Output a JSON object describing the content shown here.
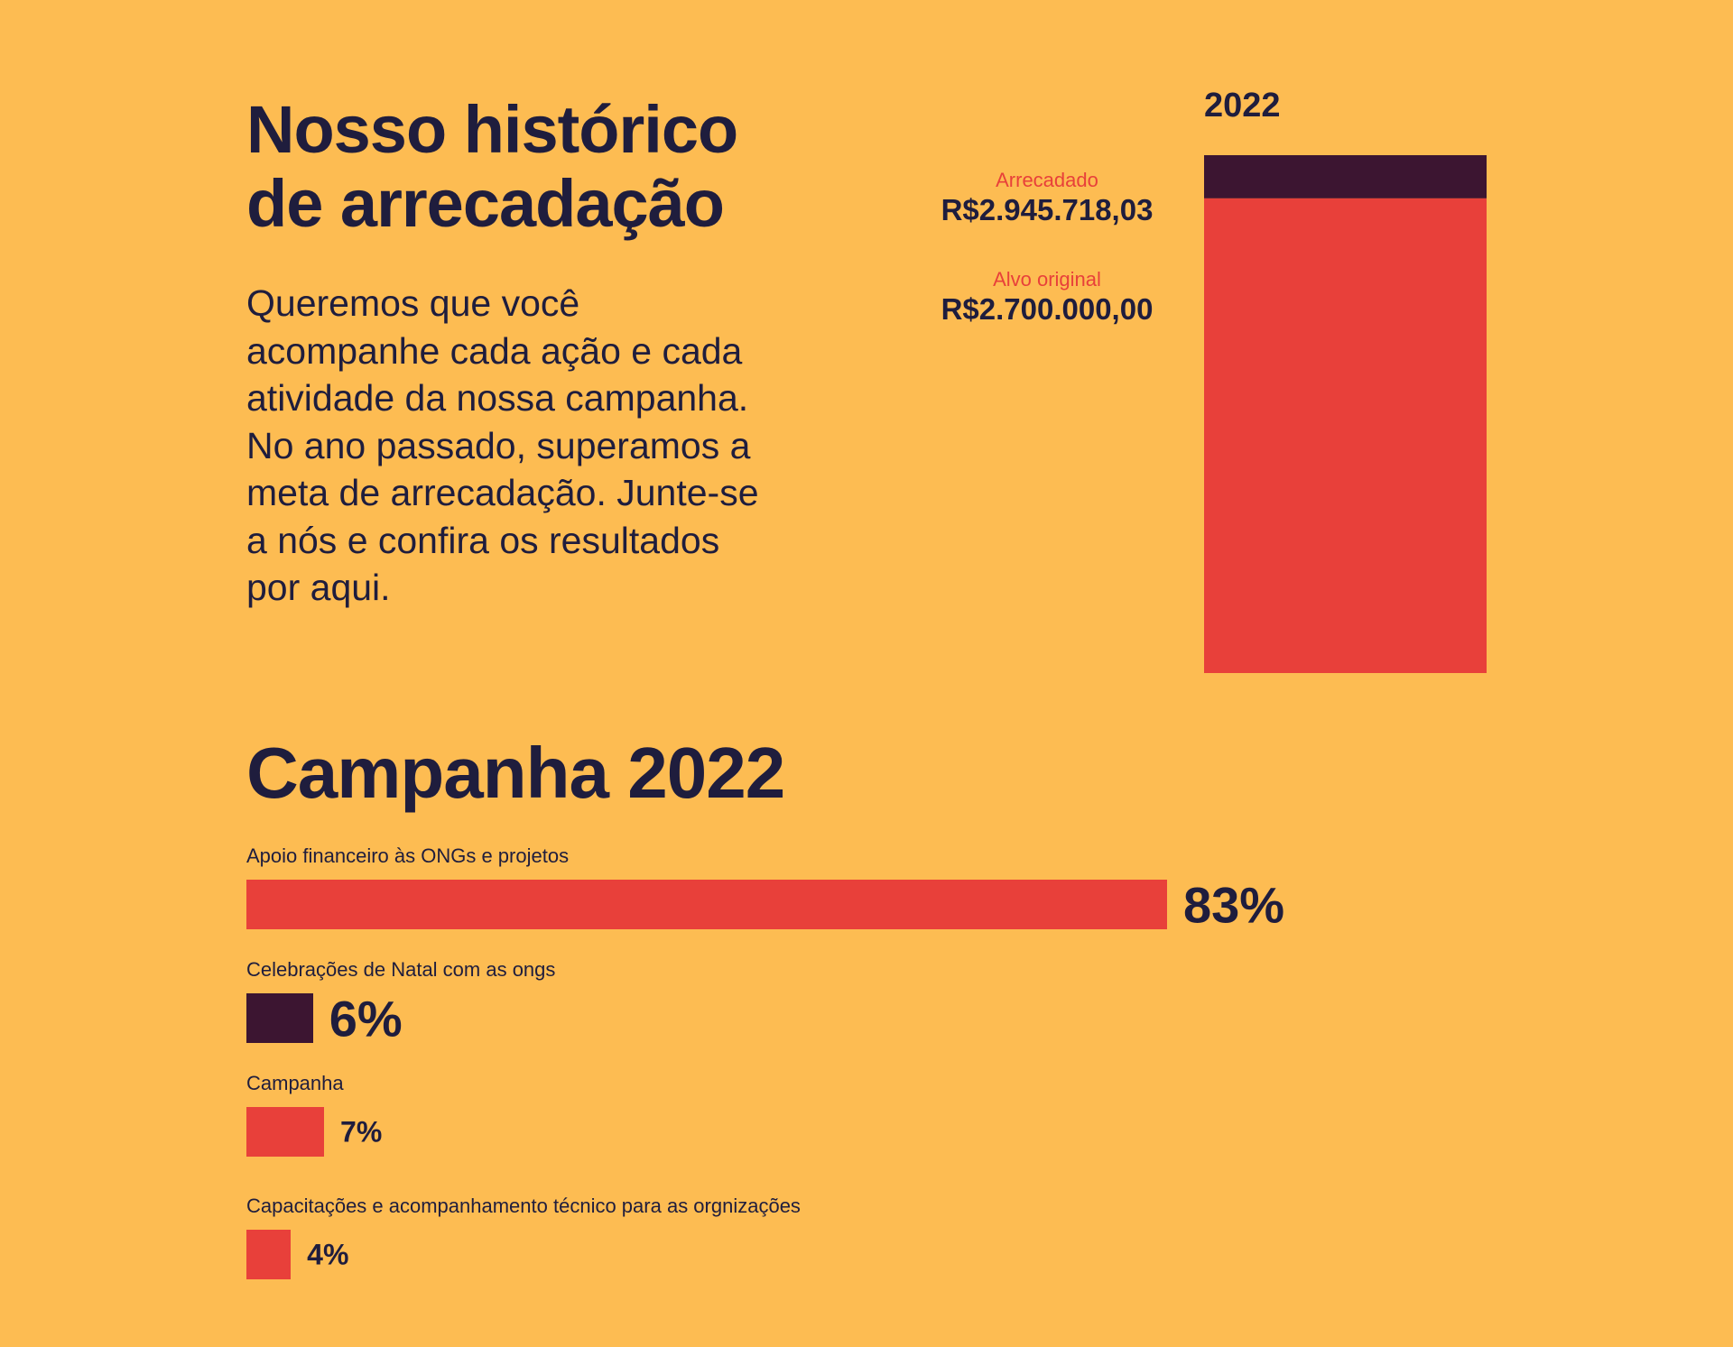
{
  "title_lines": [
    "Nosso histórico",
    "de arrecadação"
  ],
  "intro_lines": [
    "Queremos que você",
    "acompanhe cada ação e cada",
    "atividade da nossa campanha.",
    "No ano passado, superamos a",
    "meta de arrecadação. Junte-se",
    "a nós e confira os resultados",
    "por aqui."
  ],
  "chart_data": [
    {
      "type": "bar",
      "title": "2022",
      "stacked": true,
      "raised_label": "Arrecadado",
      "raised_value_text": "R$2.945.718,03",
      "raised_value": 2945718.03,
      "target_label": "Alvo original",
      "target_value_text": "R$2.700.000,00",
      "target_value": 2700000.0,
      "colors": {
        "raised": "#3C1531",
        "target": "#E8403A"
      }
    },
    {
      "type": "bar",
      "orientation": "horizontal",
      "title": "Campanha 2022",
      "unit": "%",
      "categories": [
        "Apoio financeiro às ONGs e projetos",
        "Celebrações de Natal com as ongs",
        "Campanha",
        "Capacitações e acompanhamento técnico para as orgnizações"
      ],
      "values": [
        83,
        6,
        7,
        4
      ],
      "labels": [
        "83%",
        "6%",
        "7%",
        "4%"
      ],
      "colors": [
        "#E8403A",
        "#3C1531",
        "#E8403A",
        "#E8403A"
      ]
    }
  ]
}
